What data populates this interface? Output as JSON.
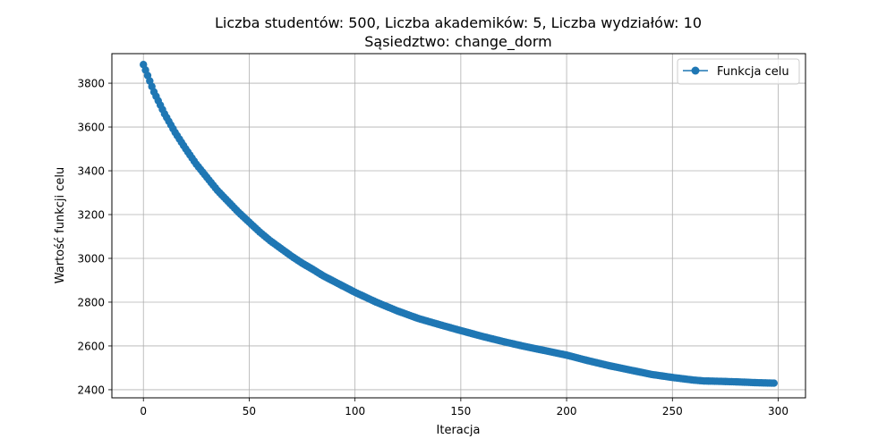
{
  "chart_data": {
    "type": "line",
    "title": "Liczba studentów: 500, Liczba akademików: 5, Liczba wydziałów: 10",
    "subtitle": "Sąsiedztwo: change_dorm",
    "xlabel": "Iteracja",
    "ylabel": "Wartość funkcji celu",
    "xlim": [
      -14.9,
      312.9
    ],
    "ylim": [
      2363,
      3935
    ],
    "xticks": [
      0,
      50,
      100,
      150,
      200,
      250,
      300
    ],
    "yticks": [
      2400,
      2600,
      2800,
      3000,
      3200,
      3400,
      3600,
      3800
    ],
    "grid": true,
    "legend_position": "top-right",
    "colors": {
      "series": "#1f77b4",
      "grid": "#b0b0b0"
    },
    "series": [
      {
        "name": "Funkcja celu",
        "marker": "circle",
        "x": [
          0,
          5,
          10,
          15,
          20,
          25,
          30,
          35,
          40,
          45,
          50,
          55,
          60,
          65,
          70,
          75,
          80,
          85,
          90,
          95,
          100,
          110,
          120,
          130,
          140,
          150,
          160,
          170,
          180,
          190,
          200,
          210,
          220,
          230,
          240,
          250,
          260,
          265,
          270,
          280,
          290,
          298
        ],
        "y": [
          3885,
          3760,
          3660,
          3575,
          3500,
          3430,
          3370,
          3310,
          3260,
          3210,
          3165,
          3120,
          3080,
          3045,
          3010,
          2978,
          2950,
          2920,
          2895,
          2870,
          2845,
          2800,
          2760,
          2725,
          2697,
          2670,
          2644,
          2620,
          2598,
          2578,
          2558,
          2533,
          2510,
          2490,
          2470,
          2456,
          2444,
          2440,
          2439,
          2436,
          2432,
          2430
        ]
      }
    ]
  }
}
